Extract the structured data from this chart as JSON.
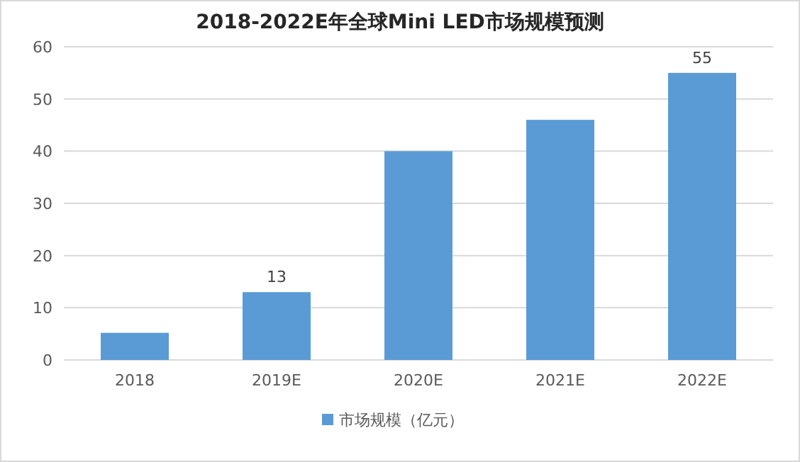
{
  "chart_data": {
    "type": "bar",
    "title": "2018-2022E年全球Mini LED市场规模预测",
    "categories": [
      "2018",
      "2019E",
      "2020E",
      "2021E",
      "2022E"
    ],
    "series": [
      {
        "name": "市场规模（亿元）",
        "color": "#5b9bd5",
        "values": [
          5.2,
          13,
          40,
          46,
          55
        ],
        "value_labels": [
          null,
          "13",
          null,
          null,
          "55"
        ]
      }
    ],
    "ylim": [
      0,
      60
    ],
    "yticks": [
      0,
      10,
      20,
      30,
      40,
      50,
      60
    ],
    "grid": "y",
    "legend": "bottom"
  }
}
